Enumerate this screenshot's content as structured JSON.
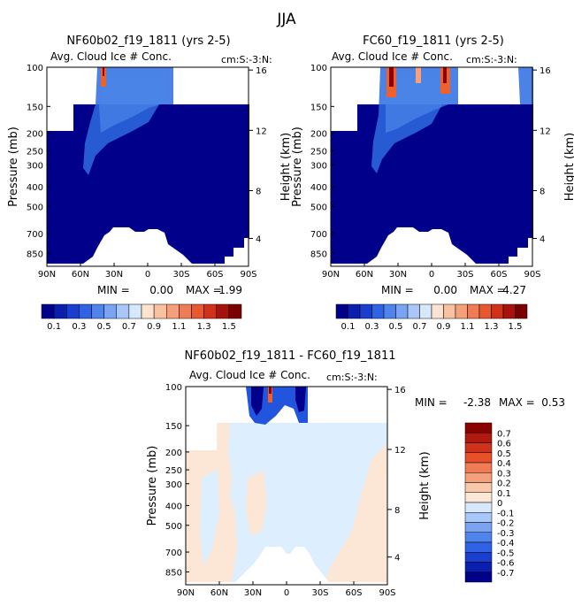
{
  "season": "JJA",
  "palette": {
    "dark_blue": "#00008B",
    "bright_blue": "#2255DD",
    "light_blue": "#DDEEFF",
    "peach": "#FCE7D6",
    "orange": "#F0602A",
    "dark_red": "#8B0000"
  },
  "shared_axes": {
    "x_ticks": [
      "90N",
      "60N",
      "30N",
      "0",
      "30S",
      "60S",
      "90S"
    ],
    "y_ticks_mb": [
      "100",
      "150",
      "200",
      "250",
      "300",
      "400",
      "500",
      "700",
      "850"
    ],
    "y2_ticks_km": [
      "16",
      "12",
      "8",
      "4"
    ],
    "ylabel": "Pressure (mb)",
    "y2label": "Height (km)"
  },
  "chart_data": [
    {
      "type": "heatmap",
      "title": "NF60b02_f19_1811 (yrs 2-5)",
      "subtitle": "Avg. Cloud Ice # Conc.",
      "units": "cm:S:-3:N:",
      "min_label": "MIN =",
      "min": "0.00",
      "max_label": "MAX =",
      "max": "1.99",
      "colorbar_labels": [
        "0.1",
        "0.3",
        "0.5",
        "0.7",
        "0.9",
        "1.1",
        "1.3",
        "1.5"
      ]
    },
    {
      "type": "heatmap",
      "title": "FC60_f19_1811 (yrs 2-5)",
      "subtitle": "Avg. Cloud Ice # Conc.",
      "units": "cm:S:-3:N:",
      "min_label": "MIN =",
      "min": "0.00",
      "max_label": "MAX =",
      "max": "4.27",
      "colorbar_labels": [
        "0.1",
        "0.3",
        "0.5",
        "0.7",
        "0.9",
        "1.1",
        "1.3",
        "1.5"
      ]
    },
    {
      "type": "heatmap",
      "title": "NF60b02_f19_1811 - FC60_f19_1811",
      "subtitle": "Avg. Cloud Ice # Conc.",
      "units": "cm:S:-3:N:",
      "min_label": "MIN =",
      "min": "-2.38",
      "max_label": "MAX =",
      "max": "0.53",
      "colorbar_labels": [
        "0.7",
        "0.6",
        "0.5",
        "0.4",
        "0.3",
        "0.2",
        "0.1",
        "0",
        "-0.1",
        "-0.2",
        "-0.3",
        "-0.4",
        "-0.5",
        "-0.6",
        "-0.7"
      ]
    }
  ]
}
